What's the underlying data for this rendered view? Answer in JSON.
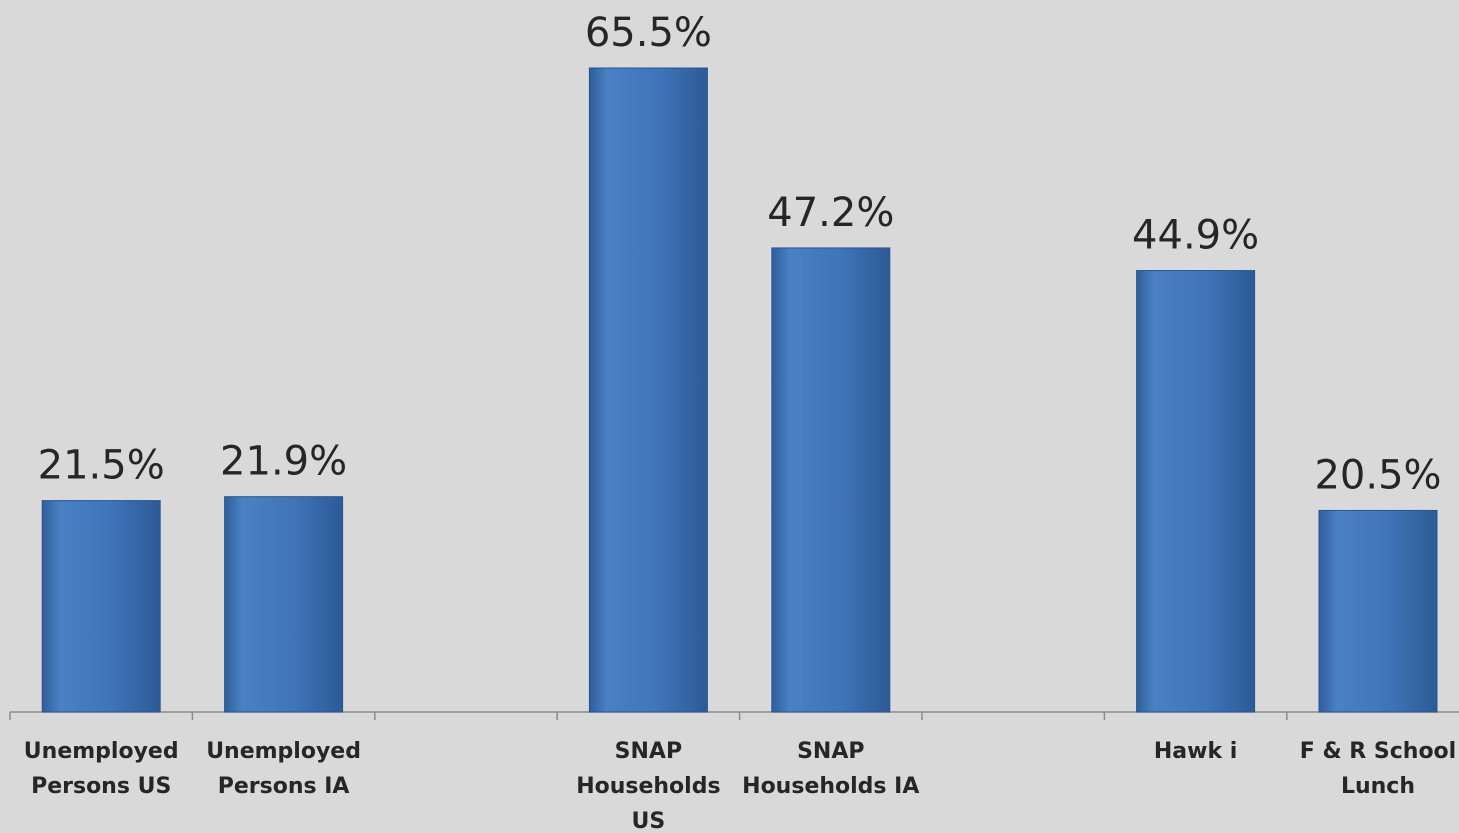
{
  "chart_data": {
    "type": "bar",
    "categories": [
      "Unemployed Persons US",
      "Unemployed Persons IA",
      null,
      "SNAP Households US",
      "SNAP Households IA",
      null,
      "Hawk i",
      "F & R School Lunch"
    ],
    "values": [
      21.5,
      21.9,
      null,
      65.5,
      47.2,
      null,
      44.9,
      20.5
    ],
    "value_labels": [
      "21.5%",
      "21.9%",
      null,
      "65.5%",
      "47.2%",
      null,
      "44.9%",
      "20.5%"
    ],
    "color": "#4a80c4"
  }
}
